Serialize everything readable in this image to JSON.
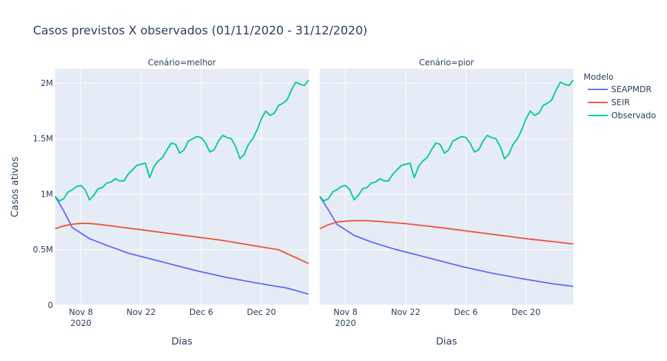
{
  "chart_data": {
    "type": "line",
    "title": "Casos previstos X observados (01/11/2020 - 31/12/2020)",
    "xlabel": "Dias",
    "ylabel": "Casos ativos",
    "ylim": [
      0,
      2130000
    ],
    "xlim": [
      "2020-11-02",
      "2020-12-31"
    ],
    "x_ticks": [
      {
        "date": "2020-11-08",
        "label": "Nov 8",
        "sublabel": "2020"
      },
      {
        "date": "2020-11-22",
        "label": "Nov 22",
        "sublabel": ""
      },
      {
        "date": "2020-12-06",
        "label": "Dec 6",
        "sublabel": ""
      },
      {
        "date": "2020-12-20",
        "label": "Dec 20",
        "sublabel": ""
      }
    ],
    "y_ticks": [
      {
        "value": 0,
        "label": "0"
      },
      {
        "value": 500000,
        "label": "0.5M"
      },
      {
        "value": 1000000,
        "label": "1M"
      },
      {
        "value": 1500000,
        "label": "1.5M"
      },
      {
        "value": 2000000,
        "label": "2M"
      }
    ],
    "grid": true,
    "legend": {
      "title": "Modelo",
      "position": "right"
    },
    "colors": {
      "SEAPMDR": "#636efa",
      "SEIR": "#ef553b",
      "Observado": "#00cc96",
      "plot_bg": "#e5ecf6",
      "grid": "#ffffff",
      "text": "#2a3f5f"
    },
    "facets": [
      {
        "label": "Cenário=melhor",
        "series": [
          {
            "name": "SEAPMDR",
            "points": [
              [
                "2020-11-02",
                980000
              ],
              [
                "2020-11-04",
                850000
              ],
              [
                "2020-11-06",
                700000
              ],
              [
                "2020-11-08",
                650000
              ],
              [
                "2020-11-10",
                600000
              ],
              [
                "2020-11-14",
                540000
              ],
              [
                "2020-11-19",
                470000
              ],
              [
                "2020-11-26",
                400000
              ],
              [
                "2020-12-05",
                310000
              ],
              [
                "2020-12-12",
                250000
              ],
              [
                "2020-12-19",
                200000
              ],
              [
                "2020-12-26",
                155000
              ],
              [
                "2020-12-31",
                100000
              ]
            ]
          },
          {
            "name": "SEIR",
            "points": [
              [
                "2020-11-02",
                690000
              ],
              [
                "2020-11-04",
                715000
              ],
              [
                "2020-11-06",
                730000
              ],
              [
                "2020-11-08",
                738000
              ],
              [
                "2020-11-10",
                737000
              ],
              [
                "2020-11-12",
                730000
              ],
              [
                "2020-11-15",
                715000
              ],
              [
                "2020-11-19",
                695000
              ],
              [
                "2020-11-26",
                660000
              ],
              [
                "2020-12-03",
                625000
              ],
              [
                "2020-12-10",
                590000
              ],
              [
                "2020-12-17",
                545000
              ],
              [
                "2020-12-24",
                500000
              ],
              [
                "2020-12-31",
                375000
              ]
            ]
          },
          {
            "name": "Observado",
            "points": [
              [
                "2020-11-02",
                980000
              ],
              [
                "2020-11-03",
                940000
              ],
              [
                "2020-11-04",
                960000
              ],
              [
                "2020-11-05",
                1020000
              ],
              [
                "2020-11-06",
                1040000
              ],
              [
                "2020-11-07",
                1070000
              ],
              [
                "2020-11-08",
                1080000
              ],
              [
                "2020-11-09",
                1040000
              ],
              [
                "2020-11-10",
                950000
              ],
              [
                "2020-11-11",
                990000
              ],
              [
                "2020-11-12",
                1050000
              ],
              [
                "2020-11-13",
                1060000
              ],
              [
                "2020-11-14",
                1100000
              ],
              [
                "2020-11-15",
                1110000
              ],
              [
                "2020-11-16",
                1140000
              ],
              [
                "2020-11-17",
                1120000
              ],
              [
                "2020-11-18",
                1120000
              ],
              [
                "2020-11-19",
                1180000
              ],
              [
                "2020-11-20",
                1220000
              ],
              [
                "2020-11-21",
                1260000
              ],
              [
                "2020-11-22",
                1270000
              ],
              [
                "2020-11-23",
                1280000
              ],
              [
                "2020-11-24",
                1150000
              ],
              [
                "2020-11-25",
                1250000
              ],
              [
                "2020-11-26",
                1300000
              ],
              [
                "2020-11-27",
                1330000
              ],
              [
                "2020-11-28",
                1400000
              ],
              [
                "2020-11-29",
                1460000
              ],
              [
                "2020-11-30",
                1450000
              ],
              [
                "2020-12-01",
                1370000
              ],
              [
                "2020-12-02",
                1400000
              ],
              [
                "2020-12-03",
                1480000
              ],
              [
                "2020-12-04",
                1500000
              ],
              [
                "2020-12-05",
                1520000
              ],
              [
                "2020-12-06",
                1510000
              ],
              [
                "2020-12-07",
                1460000
              ],
              [
                "2020-12-08",
                1380000
              ],
              [
                "2020-12-09",
                1400000
              ],
              [
                "2020-12-10",
                1480000
              ],
              [
                "2020-12-11",
                1530000
              ],
              [
                "2020-12-12",
                1510000
              ],
              [
                "2020-12-13",
                1500000
              ],
              [
                "2020-12-14",
                1430000
              ],
              [
                "2020-12-15",
                1320000
              ],
              [
                "2020-12-16",
                1360000
              ],
              [
                "2020-12-17",
                1450000
              ],
              [
                "2020-12-18",
                1500000
              ],
              [
                "2020-12-19",
                1580000
              ],
              [
                "2020-12-20",
                1680000
              ],
              [
                "2020-12-21",
                1750000
              ],
              [
                "2020-12-22",
                1710000
              ],
              [
                "2020-12-23",
                1730000
              ],
              [
                "2020-12-24",
                1800000
              ],
              [
                "2020-12-25",
                1820000
              ],
              [
                "2020-12-26",
                1850000
              ],
              [
                "2020-12-27",
                1940000
              ],
              [
                "2020-12-28",
                2010000
              ],
              [
                "2020-12-29",
                1990000
              ],
              [
                "2020-12-30",
                1980000
              ],
              [
                "2020-12-31",
                2030000
              ]
            ]
          }
        ]
      },
      {
        "label": "Cenário=pior",
        "series": [
          {
            "name": "SEAPMDR",
            "points": [
              [
                "2020-11-02",
                980000
              ],
              [
                "2020-11-04",
                860000
              ],
              [
                "2020-11-06",
                730000
              ],
              [
                "2020-11-08",
                680000
              ],
              [
                "2020-11-10",
                630000
              ],
              [
                "2020-11-14",
                570000
              ],
              [
                "2020-11-19",
                510000
              ],
              [
                "2020-11-26",
                440000
              ],
              [
                "2020-12-05",
                350000
              ],
              [
                "2020-12-12",
                290000
              ],
              [
                "2020-12-19",
                240000
              ],
              [
                "2020-12-26",
                195000
              ],
              [
                "2020-12-31",
                170000
              ]
            ]
          },
          {
            "name": "SEIR",
            "points": [
              [
                "2020-11-02",
                690000
              ],
              [
                "2020-11-04",
                725000
              ],
              [
                "2020-11-06",
                750000
              ],
              [
                "2020-11-08",
                758000
              ],
              [
                "2020-11-10",
                762000
              ],
              [
                "2020-11-13",
                762000
              ],
              [
                "2020-11-17",
                752000
              ],
              [
                "2020-11-22",
                735000
              ],
              [
                "2020-11-29",
                705000
              ],
              [
                "2020-12-06",
                670000
              ],
              [
                "2020-12-13",
                635000
              ],
              [
                "2020-12-20",
                600000
              ],
              [
                "2020-12-27",
                570000
              ],
              [
                "2020-12-31",
                552000
              ]
            ]
          },
          {
            "name": "Observado",
            "points": [
              [
                "2020-11-02",
                980000
              ],
              [
                "2020-11-03",
                940000
              ],
              [
                "2020-11-04",
                960000
              ],
              [
                "2020-11-05",
                1020000
              ],
              [
                "2020-11-06",
                1040000
              ],
              [
                "2020-11-07",
                1070000
              ],
              [
                "2020-11-08",
                1080000
              ],
              [
                "2020-11-09",
                1040000
              ],
              [
                "2020-11-10",
                950000
              ],
              [
                "2020-11-11",
                990000
              ],
              [
                "2020-11-12",
                1050000
              ],
              [
                "2020-11-13",
                1060000
              ],
              [
                "2020-11-14",
                1100000
              ],
              [
                "2020-11-15",
                1110000
              ],
              [
                "2020-11-16",
                1140000
              ],
              [
                "2020-11-17",
                1120000
              ],
              [
                "2020-11-18",
                1120000
              ],
              [
                "2020-11-19",
                1180000
              ],
              [
                "2020-11-20",
                1220000
              ],
              [
                "2020-11-21",
                1260000
              ],
              [
                "2020-11-22",
                1270000
              ],
              [
                "2020-11-23",
                1280000
              ],
              [
                "2020-11-24",
                1150000
              ],
              [
                "2020-11-25",
                1250000
              ],
              [
                "2020-11-26",
                1300000
              ],
              [
                "2020-11-27",
                1330000
              ],
              [
                "2020-11-28",
                1400000
              ],
              [
                "2020-11-29",
                1460000
              ],
              [
                "2020-11-30",
                1450000
              ],
              [
                "2020-12-01",
                1370000
              ],
              [
                "2020-12-02",
                1400000
              ],
              [
                "2020-12-03",
                1480000
              ],
              [
                "2020-12-04",
                1500000
              ],
              [
                "2020-12-05",
                1520000
              ],
              [
                "2020-12-06",
                1510000
              ],
              [
                "2020-12-07",
                1460000
              ],
              [
                "2020-12-08",
                1380000
              ],
              [
                "2020-12-09",
                1400000
              ],
              [
                "2020-12-10",
                1480000
              ],
              [
                "2020-12-11",
                1530000
              ],
              [
                "2020-12-12",
                1510000
              ],
              [
                "2020-12-13",
                1500000
              ],
              [
                "2020-12-14",
                1430000
              ],
              [
                "2020-12-15",
                1320000
              ],
              [
                "2020-12-16",
                1360000
              ],
              [
                "2020-12-17",
                1450000
              ],
              [
                "2020-12-18",
                1500000
              ],
              [
                "2020-12-19",
                1580000
              ],
              [
                "2020-12-20",
                1680000
              ],
              [
                "2020-12-21",
                1750000
              ],
              [
                "2020-12-22",
                1710000
              ],
              [
                "2020-12-23",
                1730000
              ],
              [
                "2020-12-24",
                1800000
              ],
              [
                "2020-12-25",
                1820000
              ],
              [
                "2020-12-26",
                1850000
              ],
              [
                "2020-12-27",
                1940000
              ],
              [
                "2020-12-28",
                2010000
              ],
              [
                "2020-12-29",
                1990000
              ],
              [
                "2020-12-30",
                1980000
              ],
              [
                "2020-12-31",
                2030000
              ]
            ]
          }
        ]
      }
    ]
  }
}
